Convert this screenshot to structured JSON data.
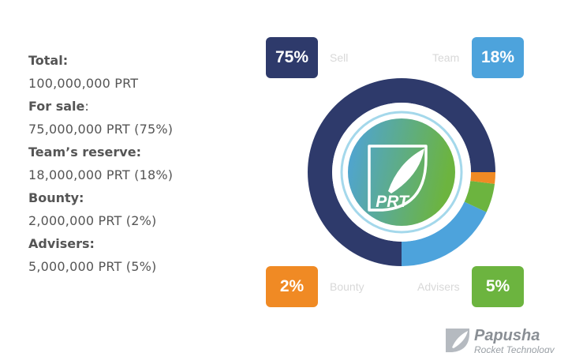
{
  "info": [
    {
      "label": "Total:",
      "value": "100,000,000 PRT"
    },
    {
      "label": "For sale",
      "suffix": ":",
      "value": "75,000,000 PRT (75%)"
    },
    {
      "label": "Team’s reserve:",
      "value": "18,000,000 PRT (18%)"
    },
    {
      "label": "Bounty:",
      "value": "2,000,000 PRT (2%)"
    },
    {
      "label": "Advisers:",
      "value": "5,000,000 PRT (5%)"
    }
  ],
  "badges": {
    "sell": {
      "text": "75%",
      "color": "#2e3a6b"
    },
    "team": {
      "text": "18%",
      "color": "#4da3dc"
    },
    "bounty": {
      "text": "2%",
      "color": "#f08a24"
    },
    "advisers": {
      "text": "5%",
      "color": "#6cb43f"
    }
  },
  "segment_labels": {
    "sell": "Sell",
    "team": "Team",
    "bounty": "Bounty",
    "advisers": "Advisers"
  },
  "center_logo": {
    "text": "PRT",
    "gradient": [
      "#4da3dc",
      "#6cb43f"
    ]
  },
  "brand": {
    "name": "Papusha",
    "tagline": "Rocket Technology"
  },
  "chart_data": {
    "type": "pie",
    "donut": true,
    "categories": [
      "Sell",
      "Team",
      "Advisers",
      "Bounty"
    ],
    "values": [
      75,
      18,
      5,
      2
    ],
    "colors": [
      "#2e3a6b",
      "#4da3dc",
      "#6cb43f",
      "#f08a24"
    ]
  }
}
